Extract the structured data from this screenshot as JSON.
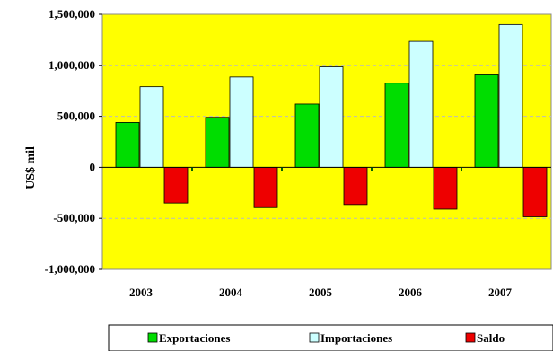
{
  "chart_data": {
    "type": "bar",
    "categories": [
      "2003",
      "2004",
      "2005",
      "2006",
      "2007"
    ],
    "series": [
      {
        "name": "Exportaciones",
        "values": [
          440000,
          490000,
          620000,
          825000,
          915000
        ],
        "color": "#00dd00"
      },
      {
        "name": "Importaciones",
        "values": [
          790000,
          885000,
          985000,
          1235000,
          1400000
        ],
        "color": "#ccffff"
      },
      {
        "name": "Saldo",
        "values": [
          -350000,
          -395000,
          -365000,
          -410000,
          -485000
        ],
        "color": "#ee0000"
      }
    ],
    "title": "",
    "xlabel": "",
    "ylabel": "US$ mil",
    "ylim": [
      -1000000,
      1500000
    ],
    "yticks": [
      1500000,
      1000000,
      500000,
      0,
      -500000,
      -1000000
    ],
    "ytick_labels": [
      "1,500,000",
      "1,000,000",
      "500,000",
      "0",
      "-500,000",
      "-1,000,000"
    ],
    "plot_background": "#ffff00",
    "grid": true,
    "legend_position": "bottom"
  }
}
